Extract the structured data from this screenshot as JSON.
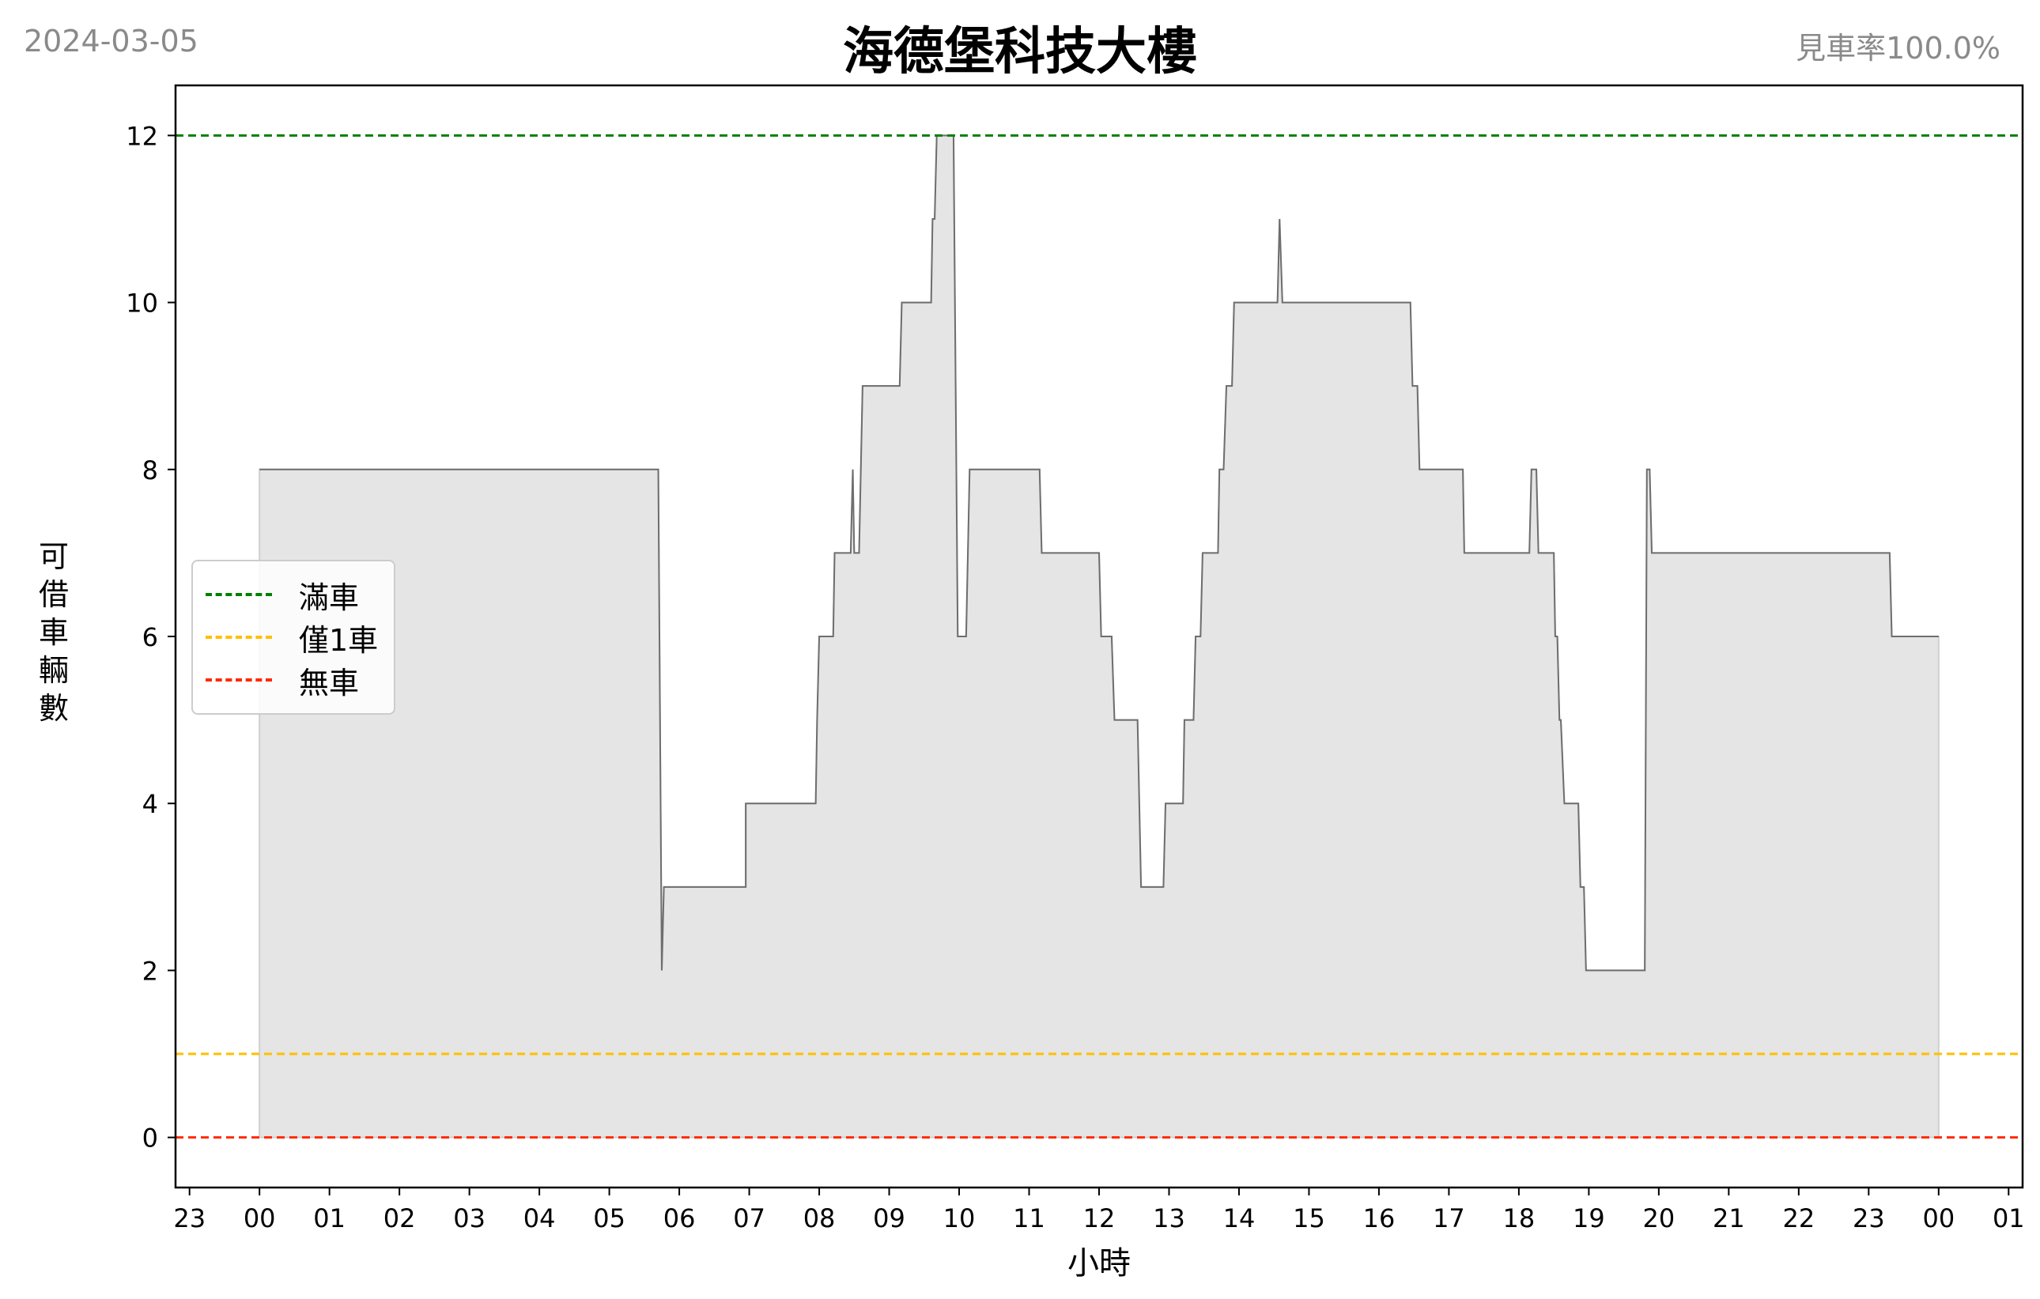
{
  "header": {
    "date": "2024-03-05",
    "title": "海德堡科技大樓",
    "ratio": "見車率100.0%"
  },
  "chart_data": {
    "type": "area",
    "title": "海德堡科技大樓",
    "xlabel": "小時",
    "ylabel": "可借車輛數",
    "x_unit": "hours",
    "xlim": [
      -1.2,
      25.2
    ],
    "ylim": [
      -0.6,
      12.6
    ],
    "yticks": [
      0,
      2,
      4,
      6,
      8,
      10,
      12
    ],
    "xtick_values": [
      -1,
      0,
      1,
      2,
      3,
      4,
      5,
      6,
      7,
      8,
      9,
      10,
      11,
      12,
      13,
      14,
      15,
      16,
      17,
      18,
      19,
      20,
      21,
      22,
      23,
      24,
      25
    ],
    "xtick_labels": [
      "23",
      "00",
      "01",
      "02",
      "03",
      "04",
      "05",
      "06",
      "07",
      "08",
      "09",
      "10",
      "11",
      "12",
      "13",
      "14",
      "15",
      "16",
      "17",
      "18",
      "19",
      "20",
      "21",
      "22",
      "23",
      "00",
      "01"
    ],
    "grid": false,
    "legend_position": "center-left",
    "reference_lines": [
      {
        "name": "滿車",
        "value": 12,
        "color": "#008000"
      },
      {
        "name": "僅1車",
        "value": 1,
        "color": "#ffbf00"
      },
      {
        "name": "無車",
        "value": 0,
        "color": "#ff2a00"
      }
    ],
    "series": [
      {
        "color": "#6e6e6e",
        "fill": "#e5e5e5",
        "points": [
          [
            0.0,
            8
          ],
          [
            5.7,
            8
          ],
          [
            5.75,
            2
          ],
          [
            5.78,
            3
          ],
          [
            6.95,
            3
          ],
          [
            6.95,
            4
          ],
          [
            7.95,
            4
          ],
          [
            7.97,
            5
          ],
          [
            8.0,
            6
          ],
          [
            8.2,
            6
          ],
          [
            8.22,
            7
          ],
          [
            8.45,
            7
          ],
          [
            8.48,
            8
          ],
          [
            8.5,
            7
          ],
          [
            8.57,
            7
          ],
          [
            8.62,
            9
          ],
          [
            9.15,
            9
          ],
          [
            9.18,
            10
          ],
          [
            9.6,
            10
          ],
          [
            9.62,
            11
          ],
          [
            9.65,
            11
          ],
          [
            9.68,
            12
          ],
          [
            9.92,
            12
          ],
          [
            9.98,
            6
          ],
          [
            10.1,
            6
          ],
          [
            10.15,
            8
          ],
          [
            11.15,
            8
          ],
          [
            11.18,
            7
          ],
          [
            12.0,
            7
          ],
          [
            12.03,
            6
          ],
          [
            12.18,
            6
          ],
          [
            12.22,
            5
          ],
          [
            12.55,
            5
          ],
          [
            12.6,
            3
          ],
          [
            12.92,
            3
          ],
          [
            12.95,
            4
          ],
          [
            13.2,
            4
          ],
          [
            13.22,
            5
          ],
          [
            13.35,
            5
          ],
          [
            13.38,
            6
          ],
          [
            13.45,
            6
          ],
          [
            13.48,
            7
          ],
          [
            13.7,
            7
          ],
          [
            13.72,
            8
          ],
          [
            13.78,
            8
          ],
          [
            13.82,
            9
          ],
          [
            13.9,
            9
          ],
          [
            13.93,
            10
          ],
          [
            14.55,
            10
          ],
          [
            14.58,
            11
          ],
          [
            14.62,
            10
          ],
          [
            16.45,
            10
          ],
          [
            16.48,
            9
          ],
          [
            16.55,
            9
          ],
          [
            16.58,
            8
          ],
          [
            17.2,
            8
          ],
          [
            17.22,
            7
          ],
          [
            18.15,
            7
          ],
          [
            18.18,
            8
          ],
          [
            18.25,
            8
          ],
          [
            18.28,
            7
          ],
          [
            18.5,
            7
          ],
          [
            18.52,
            6
          ],
          [
            18.55,
            6
          ],
          [
            18.58,
            5
          ],
          [
            18.6,
            5
          ],
          [
            18.65,
            4
          ],
          [
            18.85,
            4
          ],
          [
            18.88,
            3
          ],
          [
            18.93,
            3
          ],
          [
            18.96,
            2
          ],
          [
            19.8,
            2
          ],
          [
            19.83,
            8
          ],
          [
            19.87,
            8
          ],
          [
            19.9,
            7
          ],
          [
            23.3,
            7
          ],
          [
            23.33,
            6
          ],
          [
            24.0,
            6
          ]
        ]
      }
    ]
  }
}
